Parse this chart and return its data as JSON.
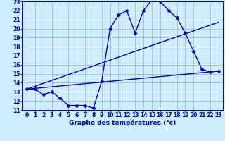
{
  "title": "Graphe des températures (°c)",
  "bg_color": "#cceeff",
  "grid_color": "#aaaacc",
  "line_color": "#0000cc",
  "xlim": [
    -0.5,
    23.5
  ],
  "ylim": [
    11,
    23
  ],
  "xticks": [
    0,
    1,
    2,
    3,
    4,
    5,
    6,
    7,
    8,
    9,
    10,
    11,
    12,
    13,
    14,
    15,
    16,
    17,
    18,
    19,
    20,
    21,
    22,
    23
  ],
  "yticks": [
    11,
    12,
    13,
    14,
    15,
    16,
    17,
    18,
    19,
    20,
    21,
    22,
    23
  ],
  "line1_x": [
    0,
    1,
    2,
    3,
    4,
    5,
    6,
    7,
    8,
    9,
    10,
    11,
    12,
    13,
    14,
    15,
    16,
    17,
    18,
    19,
    20,
    21,
    22,
    23
  ],
  "line1_y": [
    13.3,
    13.3,
    12.7,
    13.0,
    12.3,
    11.5,
    11.5,
    11.5,
    11.2,
    14.2,
    20.0,
    21.5,
    22.0,
    19.5,
    22.0,
    23.2,
    23.0,
    22.0,
    21.2,
    19.5,
    17.5,
    15.5,
    15.2,
    15.3
  ],
  "line2_x": [
    0,
    23
  ],
  "line2_y": [
    13.3,
    20.7
  ],
  "line3_x": [
    0,
    23
  ],
  "line3_y": [
    13.3,
    15.3
  ],
  "marker": "D",
  "marker_size": 2.5,
  "line_width": 1.0,
  "tick_fontsize": 5.5,
  "title_fontsize": 6.5
}
